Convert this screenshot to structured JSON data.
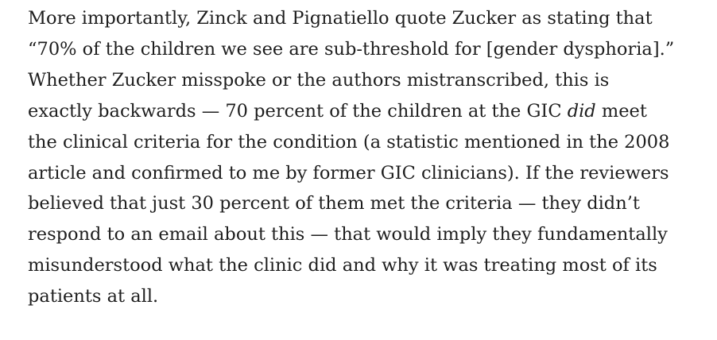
{
  "article": {
    "paragraph": {
      "lines": [
        "More importantly, Zinck and Pignatiello quote Zucker as stating that",
        "“70% of the children we see are sub-threshold for [gender dysphoria].”",
        "Whether Zucker misspoke or the authors mistranscribed, this is",
        "exactly backwards — 70 percent of the children at the GIC ",
        "the clinical criteria for the condition (a statistic mentioned in the 2008",
        "article and confirmed to me by former GIC clinicians). If the reviewers",
        "believed that just 30 percent of them met the criteria — they didn’t",
        "respond to an email about this — that would imply they fundamentally",
        "misunderstood what the clinic did and why it was treating most of its",
        "patients at all."
      ],
      "line4_emphasis": "did",
      "line4_tail": " meet"
    }
  }
}
